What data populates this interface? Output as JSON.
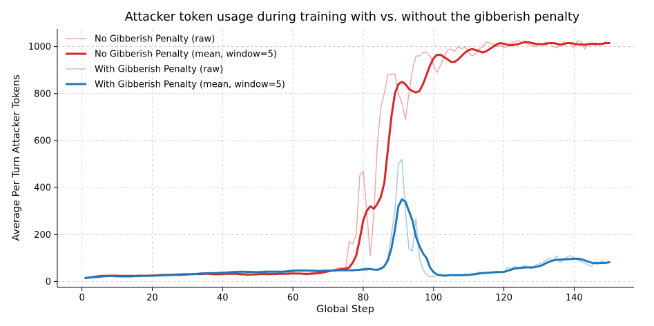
{
  "chart_data": {
    "type": "line",
    "title": "Attacker token usage during training with vs. without the gibberish penalty",
    "xlabel": "Global Step",
    "ylabel": "Average Per Turn Attacker Tokens",
    "xlim": [
      -7,
      157
    ],
    "ylim": [
      -25,
      1075
    ],
    "xticks": [
      0,
      20,
      40,
      60,
      80,
      100,
      120,
      140
    ],
    "yticks": [
      0,
      200,
      400,
      600,
      800,
      1000
    ],
    "grid": true,
    "legend_position": "top-left",
    "colors": {
      "red": "#d62728",
      "blue": "#1f77b4",
      "axis": "#000000",
      "grid": "#cccccc"
    },
    "series": [
      {
        "name": "No Gibberish Penalty (raw)",
        "color": "#d62728",
        "style": "raw",
        "x": [
          1,
          2,
          3,
          4,
          5,
          6,
          7,
          8,
          9,
          10,
          11,
          12,
          13,
          14,
          15,
          16,
          17,
          18,
          19,
          20,
          21,
          22,
          23,
          24,
          25,
          26,
          27,
          28,
          29,
          30,
          31,
          32,
          33,
          34,
          35,
          36,
          37,
          38,
          39,
          40,
          41,
          42,
          43,
          44,
          45,
          46,
          47,
          48,
          49,
          50,
          51,
          52,
          53,
          54,
          55,
          56,
          57,
          58,
          59,
          60,
          61,
          62,
          63,
          64,
          65,
          66,
          67,
          68,
          69,
          70,
          71,
          72,
          73,
          74,
          75,
          76,
          77,
          78,
          79,
          80,
          81,
          82,
          83,
          84,
          85,
          86,
          87,
          88,
          89,
          90,
          91,
          92,
          93,
          94,
          95,
          96,
          97,
          98,
          99,
          100,
          101,
          102,
          103,
          104,
          105,
          106,
          107,
          108,
          109,
          110,
          111,
          112,
          113,
          114,
          115,
          116,
          117,
          118,
          119,
          120,
          121,
          122,
          123,
          124,
          125,
          126,
          127,
          128,
          129,
          130,
          131,
          132,
          133,
          134,
          135,
          136,
          137,
          138,
          139,
          140,
          141,
          142,
          143,
          144,
          145,
          146,
          147,
          148,
          149,
          150
        ],
        "values": [
          15,
          18,
          20,
          22,
          25,
          23,
          26,
          28,
          24,
          27,
          22,
          25,
          23,
          21,
          24,
          26,
          25,
          27,
          24,
          26,
          25,
          28,
          30,
          27,
          29,
          32,
          31,
          28,
          33,
          30,
          31,
          34,
          29,
          32,
          36,
          33,
          30,
          28,
          31,
          32,
          35,
          30,
          34,
          38,
          26,
          28,
          25,
          27,
          30,
          32,
          35,
          30,
          28,
          33,
          36,
          31,
          34,
          32,
          30,
          38,
          33,
          35,
          30,
          28,
          36,
          40,
          38,
          45,
          50,
          42,
          48,
          52,
          60,
          55,
          50,
          170,
          160,
          200,
          450,
          470,
          300,
          110,
          280,
          580,
          740,
          800,
          880,
          880,
          885,
          800,
          760,
          690,
          800,
          900,
          960,
          960,
          975,
          975,
          960,
          920,
          890,
          920,
          960,
          985,
          990,
          980,
          1000,
          990,
          1000,
          975,
          960,
          970,
          990,
          1000,
          1020,
          1015,
          1010,
          1000,
          1005,
          995,
          1000,
          1015,
          1020,
          1025,
          1020,
          1015,
          1010,
          1005,
          1000,
          1015,
          1010,
          1020,
          1015,
          1000,
          995,
          1005,
          1020,
          1015,
          1010,
          995,
          1025,
          1020,
          990,
          1015,
          1010,
          1005,
          1015,
          1010,
          1020,
          1015
        ]
      },
      {
        "name": "No Gibberish Penalty (mean, window=5)",
        "color": "#d62728",
        "style": "mean",
        "x": [
          1,
          2,
          3,
          4,
          5,
          6,
          7,
          8,
          9,
          10,
          11,
          12,
          13,
          14,
          15,
          16,
          17,
          18,
          19,
          20,
          21,
          22,
          23,
          24,
          25,
          26,
          27,
          28,
          29,
          30,
          31,
          32,
          33,
          34,
          35,
          36,
          37,
          38,
          39,
          40,
          41,
          42,
          43,
          44,
          45,
          46,
          47,
          48,
          49,
          50,
          51,
          52,
          53,
          54,
          55,
          56,
          57,
          58,
          59,
          60,
          61,
          62,
          63,
          64,
          65,
          66,
          67,
          68,
          69,
          70,
          71,
          72,
          73,
          74,
          75,
          76,
          77,
          78,
          79,
          80,
          81,
          82,
          83,
          84,
          85,
          86,
          87,
          88,
          89,
          90,
          91,
          92,
          93,
          94,
          95,
          96,
          97,
          98,
          99,
          100,
          101,
          102,
          103,
          104,
          105,
          106,
          107,
          108,
          109,
          110,
          111,
          112,
          113,
          114,
          115,
          116,
          117,
          118,
          119,
          120,
          121,
          122,
          123,
          124,
          125,
          126,
          127,
          128,
          129,
          130,
          131,
          132,
          133,
          134,
          135,
          136,
          137,
          138,
          139,
          140,
          141,
          142,
          143,
          144,
          145,
          146,
          147,
          148,
          149,
          150
        ],
        "values": [
          15,
          17,
          19,
          21,
          23,
          24,
          24,
          25,
          25,
          25,
          24,
          24,
          24,
          24,
          24,
          25,
          25,
          25,
          25,
          26,
          26,
          27,
          28,
          28,
          29,
          29,
          30,
          30,
          31,
          31,
          31,
          32,
          32,
          32,
          33,
          33,
          32,
          31,
          31,
          32,
          33,
          33,
          33,
          33,
          32,
          31,
          30,
          30,
          30,
          31,
          32,
          32,
          32,
          32,
          32,
          33,
          33,
          33,
          34,
          34,
          34,
          34,
          33,
          33,
          33,
          34,
          35,
          37,
          40,
          43,
          46,
          48,
          51,
          54,
          55,
          60,
          80,
          110,
          180,
          260,
          300,
          320,
          310,
          330,
          360,
          420,
          560,
          700,
          800,
          840,
          850,
          840,
          820,
          810,
          805,
          810,
          840,
          880,
          920,
          950,
          965,
          965,
          955,
          945,
          935,
          935,
          945,
          960,
          975,
          985,
          990,
          985,
          980,
          975,
          980,
          990,
          1000,
          1010,
          1015,
          1012,
          1008,
          1005,
          1008,
          1010,
          1015,
          1020,
          1018,
          1015,
          1012,
          1010,
          1010,
          1012,
          1015,
          1015,
          1012,
          1008,
          1010,
          1015,
          1015,
          1012,
          1010,
          1008,
          1008,
          1010,
          1012,
          1012,
          1010,
          1012,
          1015,
          1015
        ]
      },
      {
        "name": "With Gibberish Penalty (raw)",
        "color": "#1f77b4",
        "style": "raw",
        "x": [
          1,
          2,
          3,
          4,
          5,
          6,
          7,
          8,
          9,
          10,
          11,
          12,
          13,
          14,
          15,
          16,
          17,
          18,
          19,
          20,
          21,
          22,
          23,
          24,
          25,
          26,
          27,
          28,
          29,
          30,
          31,
          32,
          33,
          34,
          35,
          36,
          37,
          38,
          39,
          40,
          41,
          42,
          43,
          44,
          45,
          46,
          47,
          48,
          49,
          50,
          51,
          52,
          53,
          54,
          55,
          56,
          57,
          58,
          59,
          60,
          61,
          62,
          63,
          64,
          65,
          66,
          67,
          68,
          69,
          70,
          71,
          72,
          73,
          74,
          75,
          76,
          77,
          78,
          79,
          80,
          81,
          82,
          83,
          84,
          85,
          86,
          87,
          88,
          89,
          90,
          91,
          92,
          93,
          94,
          95,
          96,
          97,
          98,
          99,
          100,
          101,
          102,
          103,
          104,
          105,
          106,
          107,
          108,
          109,
          110,
          111,
          112,
          113,
          114,
          115,
          116,
          117,
          118,
          119,
          120,
          121,
          122,
          123,
          124,
          125,
          126,
          127,
          128,
          129,
          130,
          131,
          132,
          133,
          134,
          135,
          136,
          137,
          138,
          139,
          140,
          141,
          142,
          143,
          144,
          145,
          146,
          147,
          148,
          149,
          150
        ],
        "values": [
          15,
          17,
          20,
          22,
          19,
          23,
          25,
          27,
          21,
          18,
          24,
          22,
          20,
          23,
          26,
          24,
          22,
          25,
          27,
          23,
          26,
          28,
          25,
          30,
          27,
          29,
          26,
          31,
          28,
          33,
          30,
          32,
          35,
          38,
          34,
          36,
          33,
          37,
          35,
          40,
          38,
          42,
          44,
          40,
          43,
          41,
          39,
          42,
          38,
          40,
          44,
          46,
          43,
          41,
          45,
          42,
          40,
          44,
          47,
          52,
          48,
          50,
          46,
          44,
          48,
          45,
          42,
          47,
          50,
          46,
          44,
          48,
          52,
          50,
          46,
          48,
          45,
          52,
          50,
          48,
          46,
          55,
          52,
          48,
          50,
          60,
          100,
          200,
          300,
          500,
          520,
          300,
          140,
          130,
          270,
          100,
          50,
          30,
          20,
          22,
          25,
          28,
          24,
          30,
          26,
          28,
          24,
          27,
          25,
          30,
          32,
          35,
          40,
          38,
          36,
          40,
          42,
          44,
          40,
          38,
          60,
          55,
          65,
          58,
          62,
          68,
          60,
          55,
          70,
          75,
          80,
          90,
          100,
          85,
          110,
          80,
          95,
          105,
          110,
          100,
          90,
          85,
          80,
          70,
          65,
          85,
          80,
          90,
          75,
          85
        ]
      },
      {
        "name": "With Gibberish Penalty (mean, window=5)",
        "color": "#1f77b4",
        "style": "mean",
        "x": [
          1,
          2,
          3,
          4,
          5,
          6,
          7,
          8,
          9,
          10,
          11,
          12,
          13,
          14,
          15,
          16,
          17,
          18,
          19,
          20,
          21,
          22,
          23,
          24,
          25,
          26,
          27,
          28,
          29,
          30,
          31,
          32,
          33,
          34,
          35,
          36,
          37,
          38,
          39,
          40,
          41,
          42,
          43,
          44,
          45,
          46,
          47,
          48,
          49,
          50,
          51,
          52,
          53,
          54,
          55,
          56,
          57,
          58,
          59,
          60,
          61,
          62,
          63,
          64,
          65,
          66,
          67,
          68,
          69,
          70,
          71,
          72,
          73,
          74,
          75,
          76,
          77,
          78,
          79,
          80,
          81,
          82,
          83,
          84,
          85,
          86,
          87,
          88,
          89,
          90,
          91,
          92,
          93,
          94,
          95,
          96,
          97,
          98,
          99,
          100,
          101,
          102,
          103,
          104,
          105,
          106,
          107,
          108,
          109,
          110,
          111,
          112,
          113,
          114,
          115,
          116,
          117,
          118,
          119,
          120,
          121,
          122,
          123,
          124,
          125,
          126,
          127,
          128,
          129,
          130,
          131,
          132,
          133,
          134,
          135,
          136,
          137,
          138,
          139,
          140,
          141,
          142,
          143,
          144,
          145,
          146,
          147,
          148,
          149,
          150
        ],
        "values": [
          15,
          16,
          18,
          19,
          20,
          22,
          23,
          24,
          23,
          23,
          22,
          22,
          22,
          22,
          23,
          23,
          24,
          24,
          24,
          25,
          25,
          26,
          26,
          27,
          27,
          28,
          28,
          28,
          29,
          30,
          31,
          32,
          33,
          34,
          35,
          35,
          36,
          36,
          37,
          37,
          38,
          39,
          40,
          41,
          42,
          42,
          41,
          41,
          40,
          40,
          40,
          41,
          42,
          42,
          42,
          42,
          42,
          43,
          44,
          45,
          46,
          47,
          47,
          47,
          46,
          46,
          45,
          45,
          45,
          46,
          46,
          47,
          48,
          48,
          48,
          48,
          48,
          49,
          50,
          52,
          54,
          53,
          51,
          50,
          55,
          65,
          90,
          140,
          220,
          320,
          350,
          340,
          300,
          260,
          190,
          150,
          120,
          100,
          60,
          40,
          30,
          27,
          25,
          26,
          27,
          27,
          27,
          27,
          28,
          28,
          30,
          32,
          34,
          36,
          37,
          38,
          39,
          40,
          40,
          41,
          45,
          50,
          55,
          57,
          58,
          60,
          60,
          60,
          62,
          65,
          70,
          78,
          85,
          90,
          92,
          93,
          94,
          95,
          96,
          97,
          97,
          95,
          90,
          85,
          80,
          78,
          78,
          79,
          80,
          82
        ]
      }
    ]
  }
}
